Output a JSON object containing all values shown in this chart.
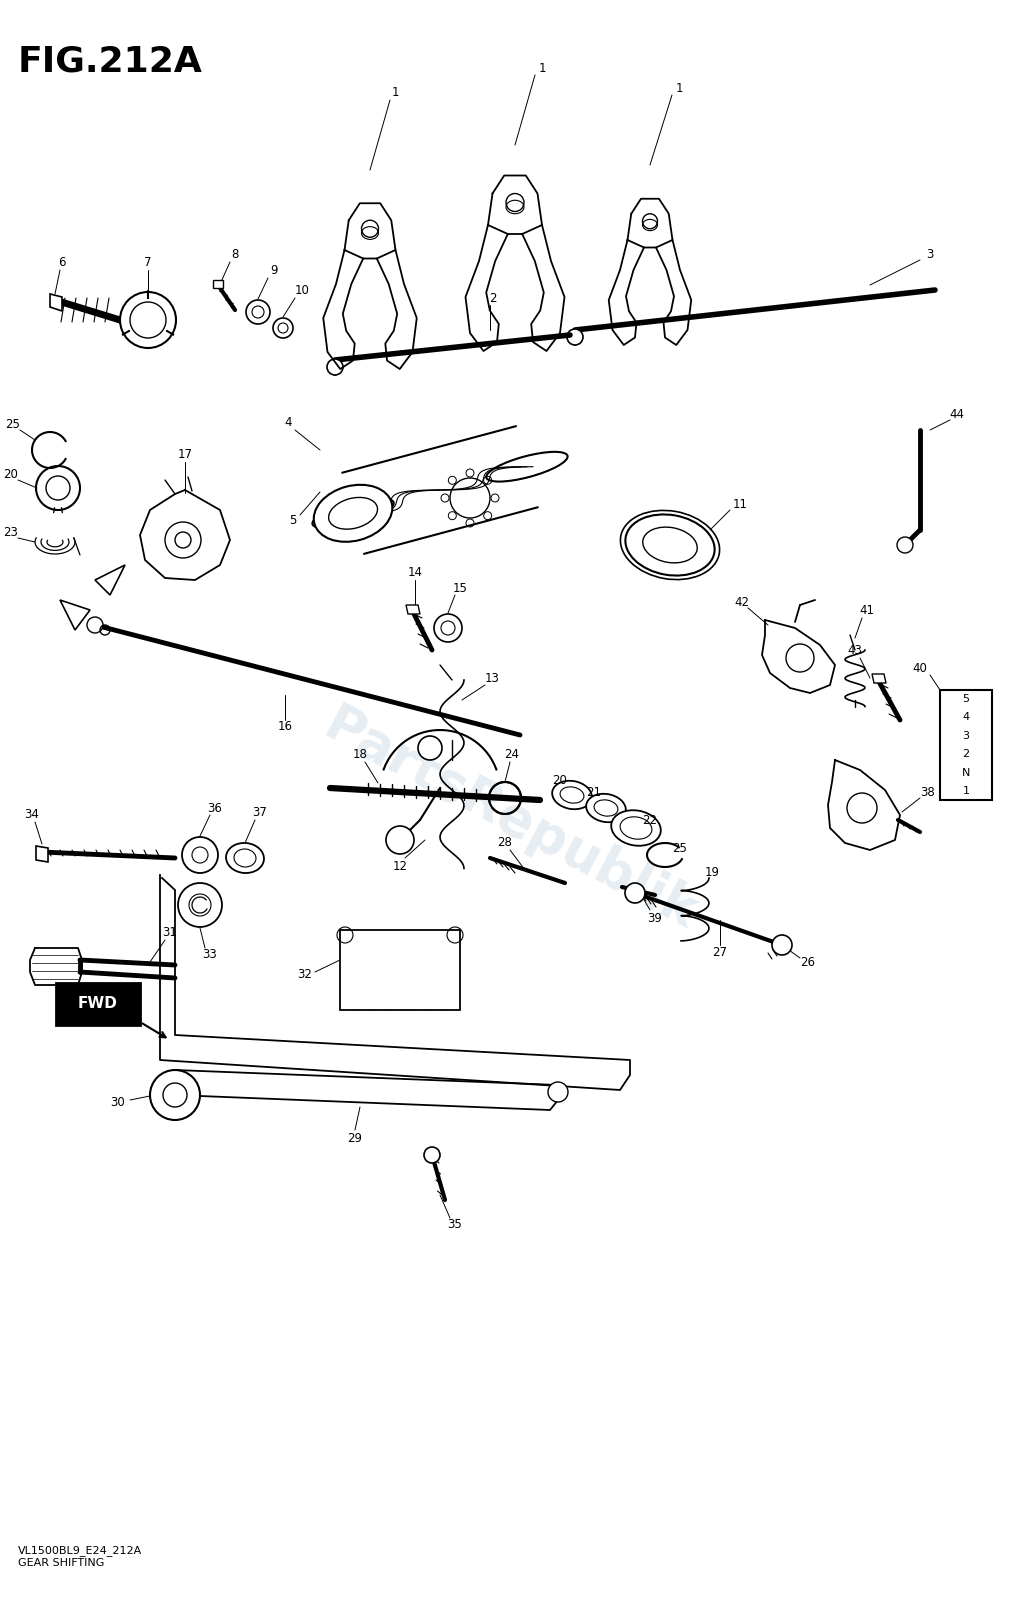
{
  "title": "FIG.212A",
  "subtitle1": "VL1500BL9_E24_212A",
  "subtitle2": "GEAR SHIFTING",
  "bg_color": "#ffffff",
  "line_color": "#000000",
  "watermark": "PartsRepublik",
  "watermark_color": "#b8cfe0",
  "watermark_alpha": 0.35,
  "title_fontsize": 26,
  "subtitle_fontsize": 8,
  "label_fontsize": 8.5,
  "gear_labels": [
    "5",
    "4",
    "3",
    "2",
    "N",
    "1"
  ]
}
